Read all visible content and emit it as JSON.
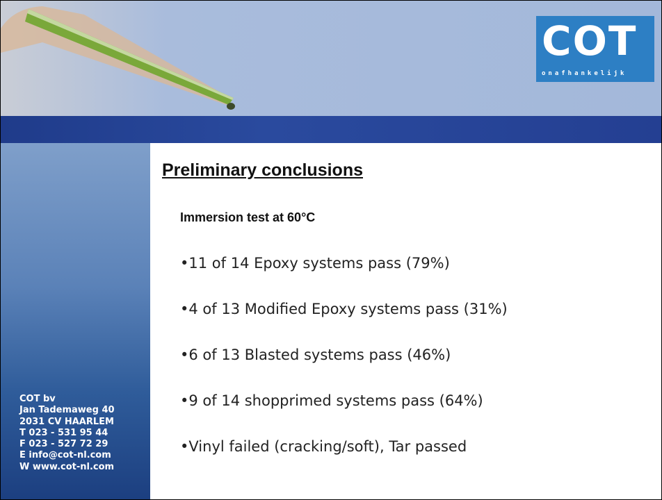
{
  "header": {
    "logo": {
      "name": "COT",
      "tagline": "onafhankelijk"
    }
  },
  "sidebar": {
    "address": [
      "COT bv",
      "Jan Tademaweg 40",
      "2031 CV  HAARLEM",
      "T  023 - 531 95 44",
      "F  023 - 527 72 29",
      "E  info@cot-nl.com",
      "W www.cot-nl.com"
    ]
  },
  "content": {
    "title": "Preliminary conclusions",
    "subtitle": "Immersion test at 60°C",
    "bullets": [
      "11 of 14 Epoxy systems pass (79%)",
      "4 of 13 Modified Epoxy systems pass (31%)",
      "6 of 13 Blasted systems pass (46%)",
      "9 of 14 shopprimed systems pass (64%)",
      "Vinyl failed (cracking/soft), Tar passed"
    ]
  }
}
